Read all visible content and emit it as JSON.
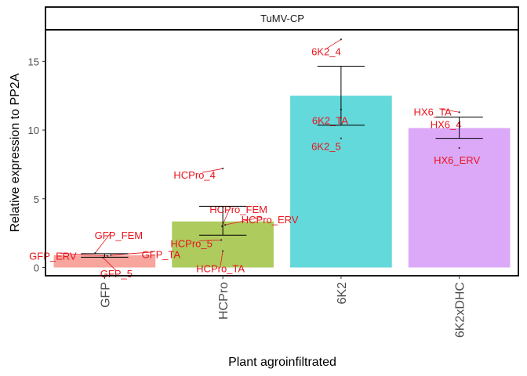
{
  "chart_data": {
    "type": "bar",
    "facet_title": "TuMV-CP",
    "xlabel": "Plant agroinfiltrated",
    "ylabel": "Relative expression to PP2A",
    "categories": [
      "GFP",
      "HCPro",
      "6K2",
      "6K2xDHC"
    ],
    "y_ticks": [
      "0",
      "5",
      "10",
      "15"
    ],
    "ylim": [
      -0.6,
      17.3
    ],
    "grid": false,
    "series": [
      {
        "values": [
          0.9,
          3.35,
          12.5,
          10.15
        ],
        "errors": [
          {
            "low": 0.75,
            "mean": 0.9,
            "high": 1.0
          },
          {
            "low": 2.35,
            "mean": 3.35,
            "high": 4.45
          },
          {
            "low": 10.35,
            "mean": 12.5,
            "high": 14.65
          },
          {
            "low": 9.4,
            "mean": 10.15,
            "high": 10.95
          }
        ],
        "colors": [
          "#F8A59E",
          "#AECB5E",
          "#64D9DB",
          "#DCA9F9"
        ]
      }
    ],
    "points": [
      {
        "category": "GFP",
        "y": 1.05,
        "label": "GFP_FEM"
      },
      {
        "category": "GFP",
        "y": 0.85,
        "label": "GFP_ERV"
      },
      {
        "category": "GFP",
        "y": 0.9,
        "label": "GFP_TA"
      },
      {
        "category": "GFP",
        "y": 0.72,
        "label": "GFP_5"
      },
      {
        "category": "HCPro",
        "y": 7.2,
        "label": "HCPro_4"
      },
      {
        "category": "HCPro",
        "y": 3.0,
        "label": "HCPro_FEM"
      },
      {
        "category": "HCPro",
        "y": 3.1,
        "label": "HCPro_ERV"
      },
      {
        "category": "HCPro",
        "y": 2.0,
        "label": "HCPro_5"
      },
      {
        "category": "HCPro",
        "y": 1.2,
        "label": "HCPro_TA"
      },
      {
        "category": "6K2",
        "y": 16.6,
        "label": "6K2_4"
      },
      {
        "category": "6K2",
        "y": 11.5,
        "label": "6K2_TA"
      },
      {
        "category": "6K2",
        "y": 9.4,
        "label": "6K2_5"
      },
      {
        "category": "6K2xDHC",
        "y": 11.3,
        "label": "HX6_TA"
      },
      {
        "category": "6K2xDHC",
        "y": 10.5,
        "label": "HX6_4"
      },
      {
        "category": "6K2xDHC",
        "y": 8.7,
        "label": "HX6_ERV"
      }
    ],
    "label_color": "#E8141C"
  }
}
